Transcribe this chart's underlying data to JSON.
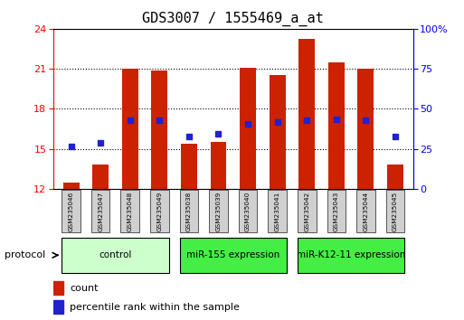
{
  "title": "GDS3007 / 1555469_a_at",
  "samples": [
    "GSM235046",
    "GSM235047",
    "GSM235048",
    "GSM235049",
    "GSM235038",
    "GSM235039",
    "GSM235040",
    "GSM235041",
    "GSM235042",
    "GSM235043",
    "GSM235044",
    "GSM235045"
  ],
  "bar_values": [
    12.45,
    13.85,
    21.0,
    20.9,
    15.4,
    15.5,
    21.05,
    20.5,
    23.25,
    21.5,
    21.0,
    13.85
  ],
  "bar_bottom": 12.0,
  "percentile_values": [
    15.15,
    15.45,
    17.15,
    17.15,
    15.95,
    16.1,
    16.85,
    17.0,
    17.15,
    17.2,
    17.15,
    15.95
  ],
  "bar_color": "#cc2200",
  "marker_color": "#2222cc",
  "ylim_left": [
    12,
    24
  ],
  "ylim_right": [
    0,
    100
  ],
  "yticks_left": [
    12,
    15,
    18,
    21,
    24
  ],
  "yticks_right": [
    0,
    25,
    50,
    75,
    100
  ],
  "groups": [
    {
      "label": "control",
      "start": 0,
      "end": 4,
      "color": "#ccffcc"
    },
    {
      "label": "miR-155 expression",
      "start": 4,
      "end": 8,
      "color": "#44ee44"
    },
    {
      "label": "miR-K12-11 expression",
      "start": 8,
      "end": 12,
      "color": "#44ee44"
    }
  ],
  "protocol_label": "protocol",
  "legend_count": "count",
  "legend_percentile": "percentile rank within the sample",
  "bar_width": 0.55,
  "title_fontsize": 11,
  "tick_fontsize": 8,
  "label_fontsize": 8
}
